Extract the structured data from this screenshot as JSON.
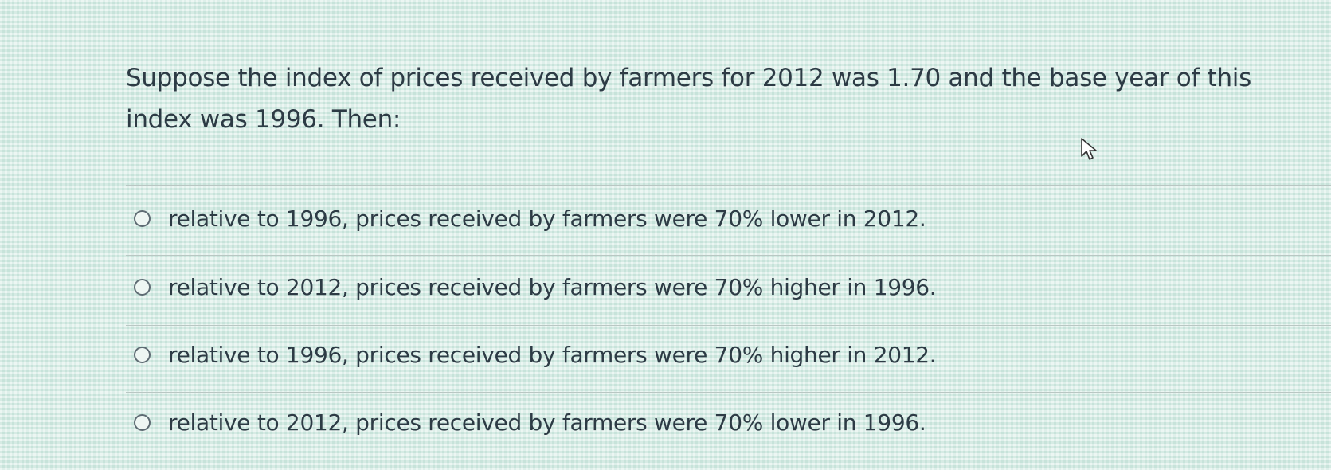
{
  "question": "Suppose the index of prices received by farmers for 2012 was 1.70 and the base year of this index was 1996. Then:",
  "options": [
    "relative to 1996, prices received by farmers were 70% lower in 2012.",
    "relative to 2012, prices received by farmers were 70% higher in 1996.",
    "relative to 1996, prices received by farmers were 70% higher in 2012.",
    "relative to 2012, prices received by farmers were 70% lower in 1996."
  ]
}
